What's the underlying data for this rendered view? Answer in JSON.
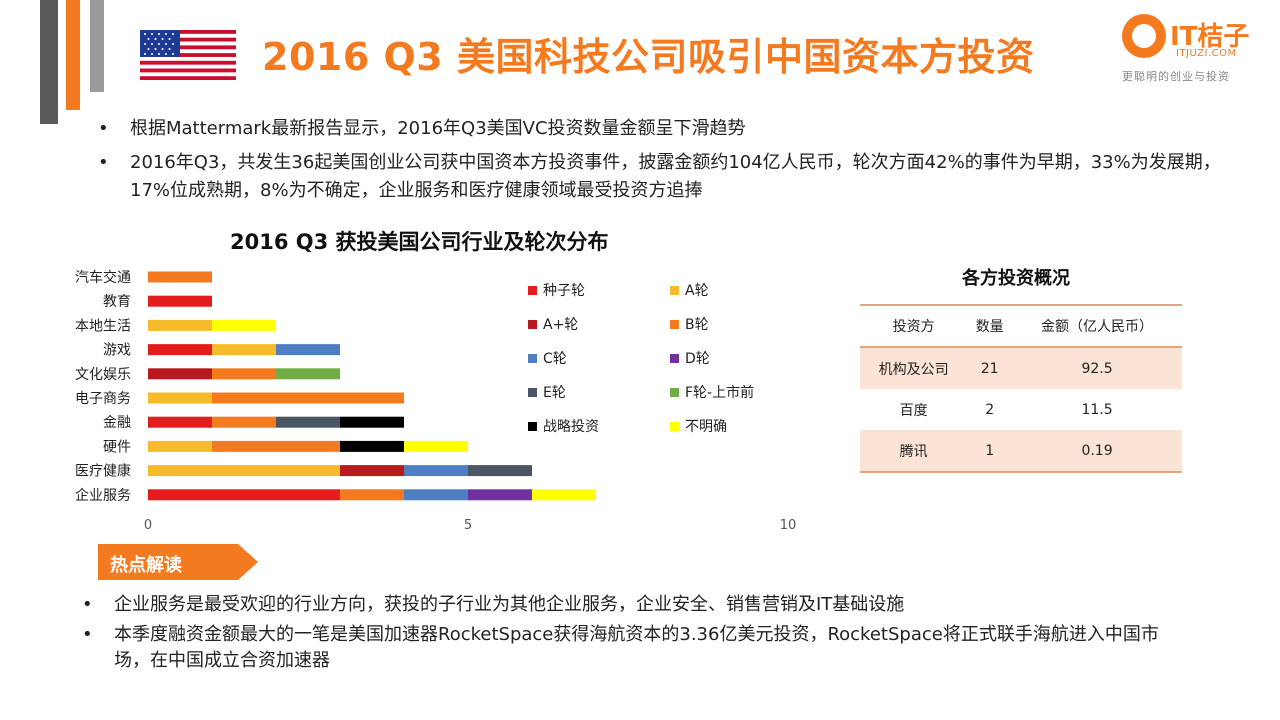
{
  "header": {
    "title": "2016 Q3 美国科技公司吸引中国资本方投资"
  },
  "logo": {
    "name": "IT桔子",
    "url": "ITJUZI.COM",
    "slogan": "更聪明的创业与投资"
  },
  "bullets": [
    {
      "text": "根据Mattermark最新报告显示，2016年Q3美国VC投资数量金额呈下滑趋势"
    },
    {
      "text": "2016年Q3，共发生36起美国创业公司获中国资本方投资事件，披露金额约104亿人民币，轮次方面42%的事件为早期，33%为发展期，17%位成熟期，8%为不确定，企业服务和医疗健康领域最受投资方追捧"
    }
  ],
  "chart_data": {
    "type": "bar",
    "orientation": "horizontal",
    "stacked": true,
    "title": "2016 Q3 获投美国公司行业及轮次分布",
    "categories": [
      "汽车交通",
      "教育",
      "本地生活",
      "游戏",
      "文化娱乐",
      "电子商务",
      "金融",
      "硬件",
      "医疗健康",
      "企业服务"
    ],
    "xlim": [
      0,
      10
    ],
    "xticks": [
      "0",
      "5",
      "10"
    ],
    "grid": false,
    "legend_position": "right",
    "series": [
      {
        "name": "种子轮",
        "color": "#e31c1c",
        "values": [
          0,
          1,
          0,
          1,
          0,
          0,
          1,
          0,
          0,
          3
        ]
      },
      {
        "name": "A轮",
        "color": "#f5bb2a",
        "values": [
          0,
          0,
          1,
          1,
          0,
          1,
          0,
          1,
          3,
          0
        ]
      },
      {
        "name": "A+轮",
        "color": "#b7191c",
        "values": [
          0,
          0,
          0,
          0,
          1,
          0,
          0,
          0,
          1,
          0
        ]
      },
      {
        "name": "B轮",
        "color": "#f47a20",
        "values": [
          1,
          0,
          0,
          0,
          1,
          3,
          1,
          2,
          0,
          1
        ]
      },
      {
        "name": "C轮",
        "color": "#4f7fc3",
        "values": [
          0,
          0,
          0,
          1,
          0,
          0,
          0,
          0,
          1,
          1
        ]
      },
      {
        "name": "D轮",
        "color": "#7030a0",
        "values": [
          0,
          0,
          0,
          0,
          0,
          0,
          0,
          0,
          0,
          1
        ]
      },
      {
        "name": "E轮",
        "color": "#4b5563",
        "values": [
          0,
          0,
          0,
          0,
          0,
          0,
          1,
          0,
          1,
          0
        ]
      },
      {
        "name": "F轮-上市前",
        "color": "#70ad47",
        "values": [
          0,
          0,
          0,
          0,
          1,
          0,
          0,
          0,
          0,
          0
        ]
      },
      {
        "name": "战略投资",
        "color": "#000000",
        "values": [
          0,
          0,
          0,
          0,
          0,
          0,
          1,
          1,
          0,
          0
        ]
      },
      {
        "name": "不明确",
        "color": "#ffff00",
        "values": [
          0,
          0,
          1,
          0,
          0,
          0,
          0,
          1,
          0,
          1
        ]
      }
    ]
  },
  "investor_table": {
    "title": "各方投资概况",
    "headers": [
      "投资方",
      "数量",
      "金额（亿人民币）"
    ],
    "rows": [
      {
        "investor": "机构及公司",
        "count": "21",
        "amount": "92.5"
      },
      {
        "investor": "百度",
        "count": "2",
        "amount": "11.5"
      },
      {
        "investor": "腾讯",
        "count": "1",
        "amount": "0.19"
      }
    ]
  },
  "hot_topic": {
    "label": "热点解读"
  },
  "bullets2": [
    {
      "text": "企业服务是最受欢迎的行业方向，获投的子行业为其他企业服务，企业安全、销售营销及IT基础设施"
    },
    {
      "text": "本季度融资金额最大的一笔是美国加速器RocketSpace获得海航资本的3.36亿美元投资，RocketSpace将正式联手海航进入中国市场，在中国成立合资加速器"
    }
  ],
  "colors": {
    "accent": "#f47a20",
    "table_row_shade": "#fbe3d6",
    "table_rule": "#e2a67a"
  },
  "icons": {
    "bullet": "•",
    "flag": "us-flag-icon"
  }
}
